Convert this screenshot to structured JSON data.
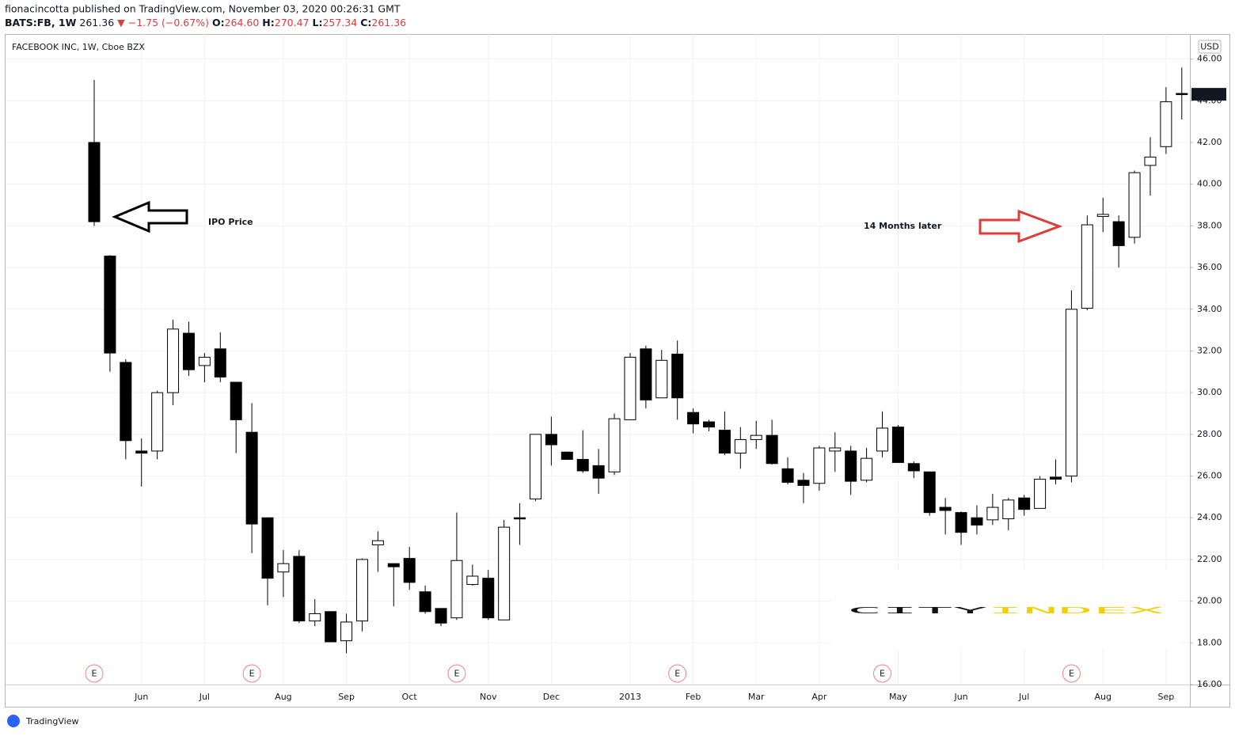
{
  "header": {
    "byline": "fionacincotta published on TradingView.com, November 03, 2020 00:26:31 GMT",
    "symbol": "BATS:FB, 1W",
    "last": "261.36",
    "change": "▼ −1.75 (−0.67%)",
    "ohlc": [
      {
        "key": "O:",
        "value": "264.60"
      },
      {
        "key": "H:",
        "value": "270.47"
      },
      {
        "key": "L:",
        "value": "257.34"
      },
      {
        "key": "C:",
        "value": "261.36"
      }
    ]
  },
  "chart_data": {
    "type": "candlestick",
    "title": "FACEBOOK INC, 1W, Cboe BZX",
    "currency": "USD",
    "up_color": "#ffffff",
    "down_color": "#000000",
    "border_color": "#000000",
    "grid": true,
    "categories": [
      null,
      null,
      null,
      "Jun",
      null,
      null,
      null,
      "Jul",
      null,
      null,
      null,
      null,
      "Aug",
      null,
      null,
      null,
      "Sep",
      null,
      null,
      null,
      "Oct",
      null,
      null,
      null,
      null,
      "Nov",
      null,
      null,
      null,
      "Dec",
      null,
      null,
      null,
      null,
      "2013",
      null,
      null,
      null,
      "Feb",
      null,
      null,
      null,
      "Mar",
      null,
      null,
      null,
      "Apr",
      null,
      null,
      null,
      null,
      "May",
      null,
      null,
      null,
      "Jun",
      null,
      null,
      null,
      "Jul",
      null,
      null,
      null,
      null,
      "Aug",
      null,
      null,
      null,
      "Sep",
      null
    ],
    "open": [
      42.0,
      36.55,
      31.45,
      27.2,
      27.2,
      30.0,
      32.85,
      31.3,
      32.1,
      30.5,
      28.1,
      24.0,
      21.4,
      22.15,
      19.05,
      19.5,
      18.1,
      19.05,
      22.7,
      21.8,
      22.05,
      20.45,
      19.65,
      19.2,
      20.8,
      21.1,
      19.1,
      24.0,
      24.9,
      28.0,
      27.15,
      26.8,
      26.5,
      26.2,
      28.7,
      32.1,
      29.75,
      31.85,
      29.05,
      28.6,
      28.2,
      27.1,
      27.75,
      27.95,
      26.35,
      25.8,
      25.65,
      27.2,
      27.2,
      25.8,
      27.2,
      28.35,
      26.6,
      26.2,
      24.5,
      24.25,
      24.0,
      23.9,
      23.95,
      24.95,
      24.45,
      25.95,
      26.0,
      34.05,
      38.45,
      38.2,
      37.45,
      40.9,
      41.8,
      44.35
    ],
    "high": [
      45.0,
      36.6,
      31.6,
      27.8,
      30.1,
      33.5,
      33.4,
      31.9,
      32.9,
      30.5,
      29.5,
      24.0,
      22.45,
      22.45,
      20.1,
      19.5,
      19.4,
      22.05,
      23.35,
      21.8,
      22.6,
      20.75,
      19.65,
      24.25,
      21.75,
      21.5,
      23.9,
      24.7,
      28.0,
      28.85,
      27.15,
      28.2,
      27.3,
      29.0,
      31.9,
      32.25,
      32.05,
      32.5,
      29.25,
      28.7,
      29.1,
      28.35,
      28.65,
      28.7,
      26.9,
      26.15,
      27.45,
      28.1,
      27.45,
      27.35,
      29.1,
      28.45,
      26.7,
      26.2,
      24.95,
      24.3,
      24.6,
      25.15,
      24.95,
      25.1,
      26.0,
      26.8,
      34.9,
      38.5,
      39.35,
      38.5,
      40.65,
      42.25,
      44.65,
      45.6
    ],
    "low": [
      38.0,
      31.0,
      26.8,
      25.5,
      26.8,
      29.4,
      30.8,
      30.5,
      30.5,
      27.1,
      22.3,
      19.8,
      20.2,
      18.95,
      18.8,
      18.05,
      17.5,
      18.55,
      21.4,
      19.75,
      20.55,
      19.4,
      18.8,
      19.1,
      20.75,
      19.1,
      19.1,
      22.7,
      24.8,
      26.5,
      26.8,
      26.15,
      25.15,
      26.05,
      28.7,
      29.25,
      29.75,
      28.7,
      28.05,
      28.15,
      27.0,
      26.35,
      27.3,
      26.55,
      25.6,
      24.7,
      25.3,
      26.2,
      25.1,
      25.7,
      26.9,
      26.65,
      25.9,
      24.1,
      23.2,
      22.7,
      23.2,
      23.65,
      23.4,
      24.1,
      24.45,
      25.6,
      25.7,
      33.95,
      37.7,
      36.0,
      37.15,
      39.45,
      41.45,
      43.1
    ],
    "close": [
      38.2,
      31.9,
      27.7,
      27.1,
      30.0,
      33.05,
      31.1,
      31.7,
      30.75,
      28.7,
      23.7,
      21.1,
      21.8,
      19.05,
      19.4,
      18.05,
      19.0,
      22.0,
      22.9,
      21.65,
      20.9,
      19.5,
      18.95,
      21.95,
      21.2,
      19.2,
      23.55,
      23.95,
      28.0,
      27.5,
      26.8,
      26.25,
      25.9,
      28.75,
      31.7,
      29.65,
      31.55,
      29.75,
      28.5,
      28.35,
      27.1,
      27.75,
      27.95,
      26.6,
      25.7,
      25.55,
      27.35,
      27.35,
      25.75,
      26.85,
      28.3,
      26.65,
      26.25,
      24.25,
      24.35,
      23.3,
      23.65,
      24.5,
      24.85,
      24.4,
      25.85,
      25.85,
      34.0,
      38.05,
      38.55,
      37.05,
      40.55,
      41.3,
      43.95,
      44.31
    ],
    "events": [
      "E",
      null,
      null,
      null,
      null,
      null,
      null,
      null,
      null,
      null,
      "E",
      null,
      null,
      null,
      null,
      null,
      null,
      null,
      null,
      null,
      null,
      null,
      null,
      "E",
      null,
      null,
      null,
      null,
      null,
      null,
      null,
      null,
      null,
      null,
      null,
      null,
      null,
      "E",
      null,
      null,
      null,
      null,
      null,
      null,
      null,
      null,
      null,
      null,
      null,
      null,
      "E",
      null,
      null,
      null,
      null,
      null,
      null,
      null,
      null,
      null,
      null,
      null,
      "E",
      null,
      null,
      null,
      null,
      null,
      null,
      null
    ],
    "ylim": [
      16,
      47.2
    ],
    "yticks": [
      {
        "value": 16,
        "label": "16.00"
      },
      {
        "value": 18,
        "label": "18.00"
      },
      {
        "value": 20,
        "label": "20.00"
      },
      {
        "value": 22,
        "label": "22.00"
      },
      {
        "value": 24,
        "label": "24.00"
      },
      {
        "value": 26,
        "label": "26.00"
      },
      {
        "value": 28,
        "label": "28.00"
      },
      {
        "value": 30,
        "label": "30.00"
      },
      {
        "value": 32,
        "label": "32.00"
      },
      {
        "value": 34,
        "label": "34.00"
      },
      {
        "value": 36,
        "label": "36.00"
      },
      {
        "value": 38,
        "label": "38.00"
      },
      {
        "value": 40,
        "label": "40.00"
      },
      {
        "value": 42,
        "label": "42.00"
      },
      {
        "value": 44,
        "label": "44.00"
      },
      {
        "value": 46,
        "label": "46.00"
      }
    ],
    "annotations": [
      "IPO Price",
      "14 Months later"
    ]
  },
  "logo": {
    "dark": "CITY",
    "bright": "INDEX"
  },
  "footer": "TradingView"
}
